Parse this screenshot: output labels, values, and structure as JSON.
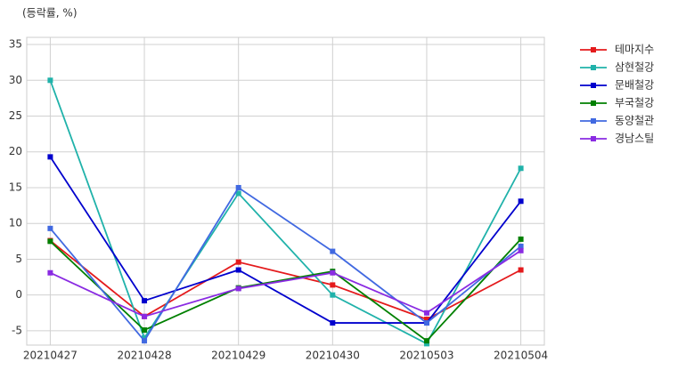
{
  "chart_data": {
    "type": "line",
    "annotation": "(등락률, %)",
    "categories": [
      "20210427",
      "20210428",
      "20210429",
      "20210430",
      "20210503",
      "20210504"
    ],
    "series": [
      {
        "name": "테마지수",
        "color": "#e41a1c",
        "values": [
          7.6,
          -3.0,
          4.6,
          1.4,
          -3.4,
          3.5
        ]
      },
      {
        "name": "삼현철강",
        "color": "#20b2aa",
        "values": [
          30.0,
          -6.0,
          14.2,
          0.0,
          -6.8,
          17.7
        ]
      },
      {
        "name": "문배철강",
        "color": "#0000cd",
        "values": [
          19.3,
          -0.8,
          3.5,
          -3.9,
          -3.9,
          13.1
        ]
      },
      {
        "name": "부국철강",
        "color": "#008000",
        "values": [
          7.5,
          -4.9,
          1.0,
          3.3,
          -6.4,
          7.8
        ]
      },
      {
        "name": "동양철관",
        "color": "#4169e1",
        "values": [
          9.3,
          -6.4,
          15.0,
          6.1,
          -3.9,
          6.8
        ]
      },
      {
        "name": "경남스틸",
        "color": "#8a2be2",
        "values": [
          3.1,
          -3.0,
          0.9,
          3.1,
          -2.5,
          6.2
        ]
      }
    ],
    "ylim": [
      -7,
      36
    ],
    "yticks": [
      -5,
      0,
      5,
      10,
      15,
      20,
      25,
      30,
      35
    ],
    "grid": true,
    "legend": "outside-right"
  }
}
